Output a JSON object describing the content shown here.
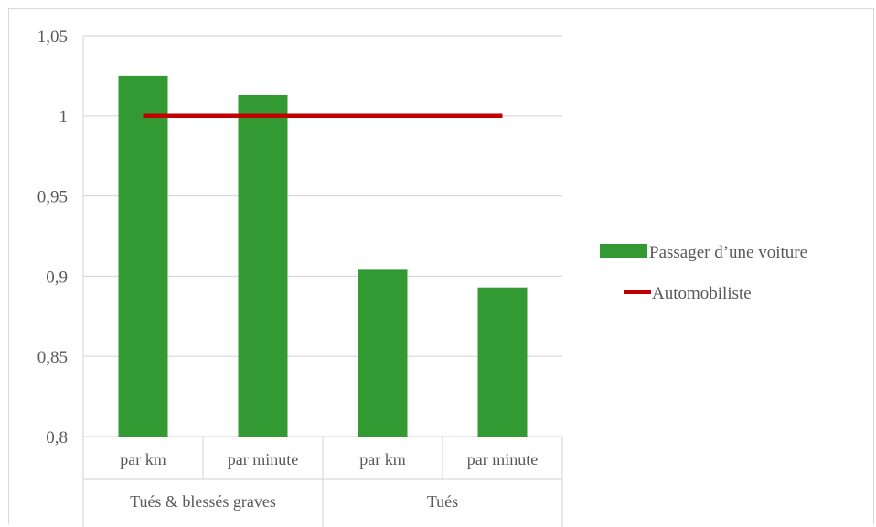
{
  "chart_data": {
    "type": "bar",
    "title": "",
    "xlabel": "",
    "ylabel": "",
    "ylim": [
      0.8,
      1.05
    ],
    "yticks": [
      "1,05",
      "1",
      "0,95",
      "0,9",
      "0,85",
      "0,8"
    ],
    "ytick_values": [
      1.05,
      1.0,
      0.95,
      0.9,
      0.85,
      0.8
    ],
    "categories": [
      "par km",
      "par minute",
      "par km",
      "par minute"
    ],
    "groups": [
      {
        "label": "Tués & blessés graves",
        "span": 2
      },
      {
        "label": "Tués",
        "span": 2
      }
    ],
    "series": [
      {
        "name": "Passager d’une voiture",
        "kind": "bar",
        "color": "#339933",
        "values": [
          1.025,
          1.013,
          0.904,
          0.893
        ]
      },
      {
        "name": "Automobiliste",
        "kind": "line",
        "color": "#c00000",
        "values": [
          1.0,
          1.0,
          1.0,
          1.0
        ]
      }
    ],
    "grid": true,
    "legend_position": "right"
  }
}
